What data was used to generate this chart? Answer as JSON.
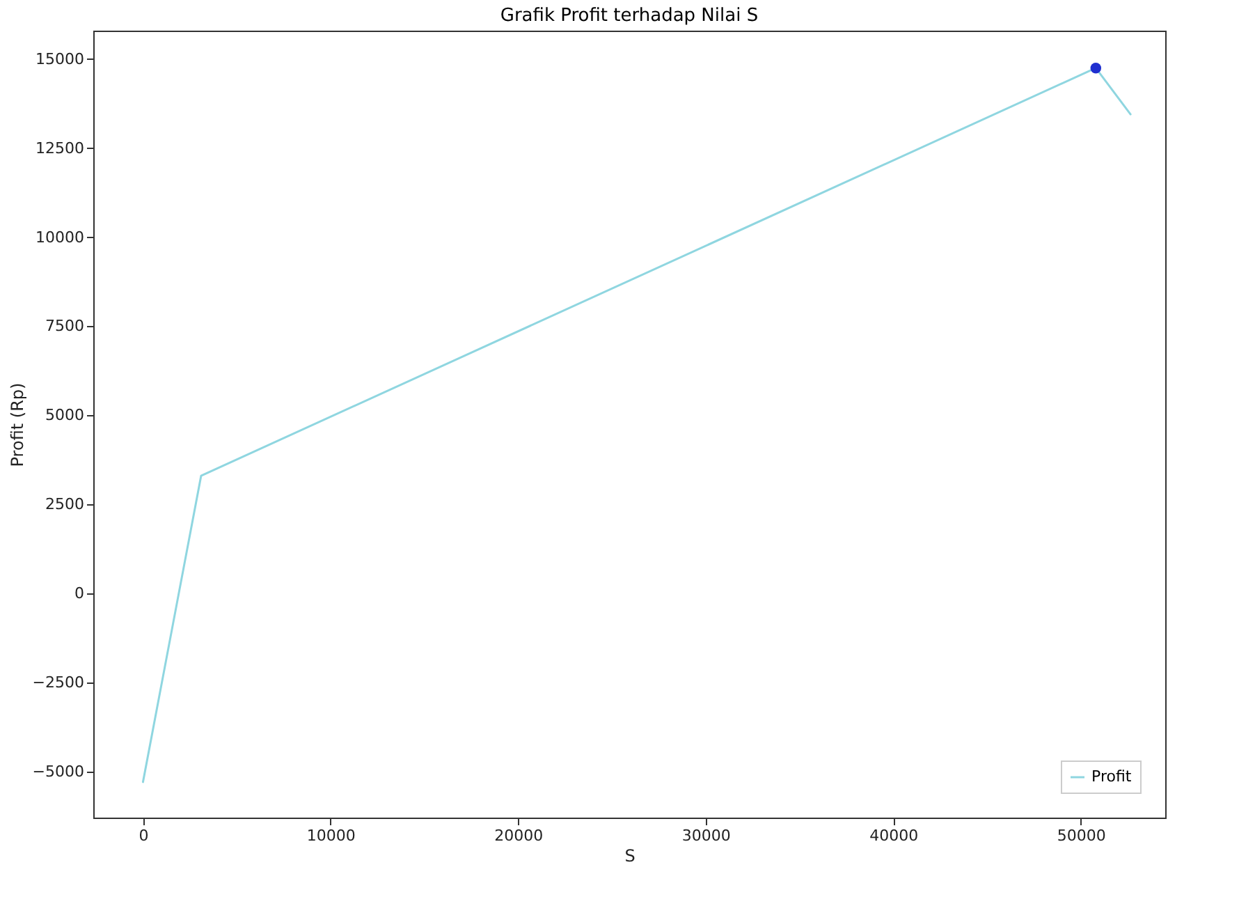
{
  "chart_data": {
    "type": "line",
    "title": "Grafik Profit terhadap Nilai S",
    "xlabel": "S",
    "ylabel": "Profit (Rp)",
    "xlim": [
      -2650,
      54500
    ],
    "xticks": [
      0,
      10000,
      20000,
      30000,
      40000,
      50000
    ],
    "ylim": [
      -6300,
      15800
    ],
    "yticks": [
      -5000,
      -2500,
      0,
      2500,
      5000,
      7500,
      10000,
      12500,
      15000
    ],
    "grid": false,
    "legend": "bottom right",
    "marker": "none",
    "series": [
      {
        "name": "Profit",
        "color": "#8fd6e0",
        "x": [
          0,
          3100,
          50800,
          52650
        ],
        "values": [
          -5300,
          3300,
          14750,
          13450
        ]
      },
      {
        "type": "scatter",
        "marker": "circle",
        "color": "#1f2fd0",
        "x": [
          50800
        ],
        "values": [
          14750
        ]
      }
    ]
  }
}
